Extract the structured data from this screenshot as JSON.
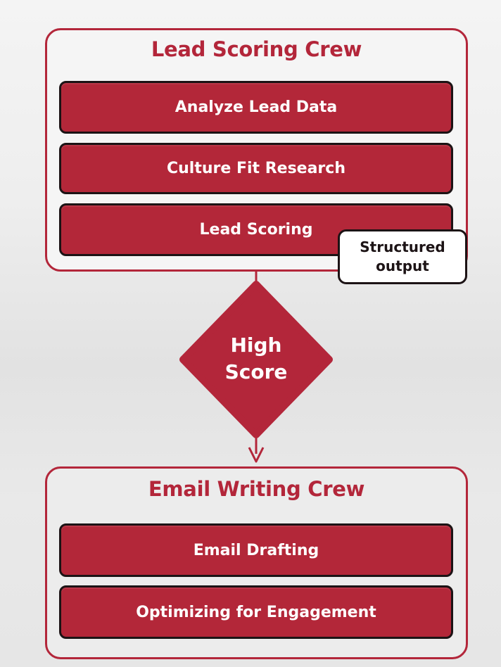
{
  "lead_scoring_crew": {
    "title": "Lead Scoring Crew",
    "tasks": [
      "Analyze Lead Data",
      "Culture Fit Research",
      "Lead Scoring"
    ],
    "output_tag": [
      "Structured",
      "output"
    ]
  },
  "decision": {
    "lines": [
      "High",
      "Score"
    ]
  },
  "email_writing_crew": {
    "title": "Email Writing Crew",
    "tasks": [
      "Email Drafting",
      "Optimizing for Engagement"
    ]
  },
  "colors": {
    "accent": "#b3263a",
    "task_fill": "#b32739",
    "outline": "#1c1315"
  }
}
